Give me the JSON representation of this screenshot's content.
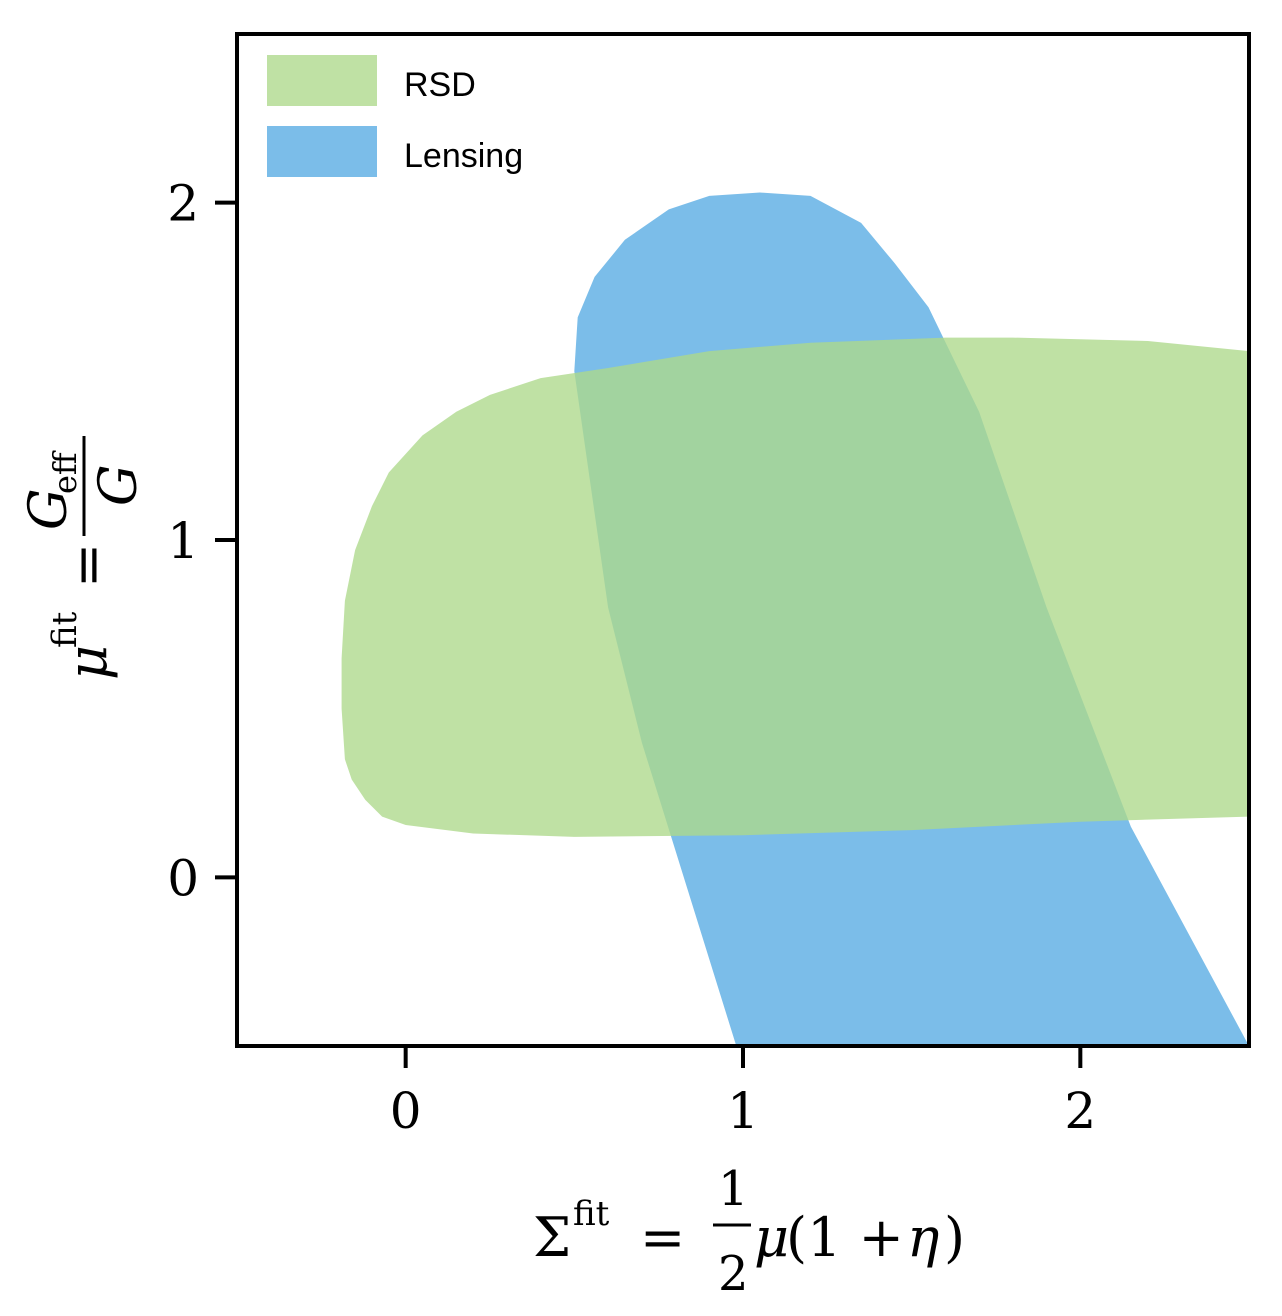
{
  "chart_data": {
    "type": "area",
    "xlabel": {
      "symbol": "Σ",
      "superscript": "fit",
      "equals": "=",
      "frac_num": "1",
      "frac_den": "2",
      "expr_mu": "μ",
      "expr_rest": "(1 + ",
      "expr_eta": "η",
      "expr_close": ")"
    },
    "ylabel": {
      "symbol": "μ",
      "superscript": "fit",
      "equals": "=",
      "frac_num": "G",
      "frac_num_sub": "eff",
      "frac_den": "G"
    },
    "xlim": [
      -0.5,
      2.5
    ],
    "ylim": [
      -0.5,
      2.5
    ],
    "xticks": [
      0,
      1,
      2
    ],
    "yticks": [
      0,
      1,
      2
    ],
    "xtick_labels": [
      "0",
      "1",
      "2"
    ],
    "ytick_labels": [
      "0",
      "1",
      "2"
    ],
    "grid": false,
    "legend_position": "top-left",
    "series": [
      {
        "name": "RSD",
        "color": "#add98a",
        "opacity": 0.78,
        "polygon": [
          [
            -0.18,
            0.35
          ],
          [
            -0.16,
            0.29
          ],
          [
            -0.12,
            0.23
          ],
          [
            -0.07,
            0.18
          ],
          [
            0.0,
            0.155
          ],
          [
            0.2,
            0.13
          ],
          [
            0.5,
            0.12
          ],
          [
            1.0,
            0.125
          ],
          [
            1.5,
            0.14
          ],
          [
            2.0,
            0.165
          ],
          [
            2.5,
            0.18
          ],
          [
            2.5,
            1.56
          ],
          [
            2.2,
            1.59
          ],
          [
            1.8,
            1.6
          ],
          [
            1.6,
            1.6
          ],
          [
            1.2,
            1.585
          ],
          [
            0.9,
            1.56
          ],
          [
            0.6,
            1.51
          ],
          [
            0.4,
            1.48
          ],
          [
            0.25,
            1.43
          ],
          [
            0.15,
            1.38
          ],
          [
            0.05,
            1.31
          ],
          [
            -0.05,
            1.2
          ],
          [
            -0.1,
            1.1
          ],
          [
            -0.15,
            0.97
          ],
          [
            -0.18,
            0.82
          ],
          [
            -0.19,
            0.65
          ],
          [
            -0.19,
            0.5
          ]
        ]
      },
      {
        "name": "Lensing",
        "color": "#7bbde9",
        "opacity": 1.0,
        "polygon": [
          [
            0.98,
            -0.5
          ],
          [
            0.7,
            0.4
          ],
          [
            0.6,
            0.8
          ],
          [
            0.55,
            1.15
          ],
          [
            0.5,
            1.5
          ],
          [
            0.51,
            1.66
          ],
          [
            0.56,
            1.78
          ],
          [
            0.65,
            1.89
          ],
          [
            0.78,
            1.98
          ],
          [
            0.9,
            2.02
          ],
          [
            1.05,
            2.03
          ],
          [
            1.2,
            2.02
          ],
          [
            1.35,
            1.94
          ],
          [
            1.45,
            1.82
          ],
          [
            1.55,
            1.69
          ],
          [
            1.7,
            1.38
          ],
          [
            1.9,
            0.8
          ],
          [
            2.15,
            0.15
          ],
          [
            2.5,
            -0.5
          ]
        ]
      }
    ]
  }
}
